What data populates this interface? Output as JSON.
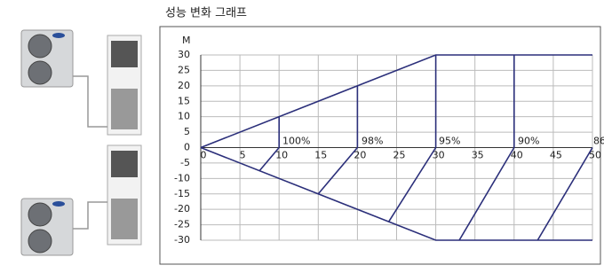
{
  "chart_data": {
    "type": "line",
    "title": "성능 변화 그래프",
    "y_label": "M",
    "xlim": [
      0,
      50
    ],
    "xticks": [
      0,
      5,
      10,
      15,
      20,
      25,
      30,
      35,
      40,
      45,
      50
    ],
    "ylim": [
      -30,
      30
    ],
    "yticks": [
      30,
      25,
      20,
      15,
      10,
      5,
      0,
      -5,
      -10,
      -15,
      -20,
      -25,
      -30
    ],
    "grid": true,
    "color": "#2b2f7a",
    "series": [
      {
        "x": [
          0,
          30,
          50
        ],
        "values": [
          0,
          30,
          30
        ]
      },
      {
        "x": [
          0,
          30,
          50
        ],
        "values": [
          0,
          -30,
          -30
        ]
      },
      {
        "x": [
          10,
          10
        ],
        "values": [
          0,
          10
        ]
      },
      {
        "x": [
          20,
          20
        ],
        "values": [
          0,
          20
        ]
      },
      {
        "x": [
          30,
          30
        ],
        "values": [
          0,
          30
        ]
      },
      {
        "x": [
          40,
          40
        ],
        "values": [
          0,
          30
        ]
      },
      {
        "x": [
          10,
          7.5
        ],
        "values": [
          0,
          -7.5
        ]
      },
      {
        "x": [
          20,
          15
        ],
        "values": [
          0,
          -15
        ]
      },
      {
        "x": [
          30,
          24
        ],
        "values": [
          0,
          -24
        ]
      },
      {
        "x": [
          40,
          33
        ],
        "values": [
          0,
          -30
        ]
      },
      {
        "x": [
          50,
          43
        ],
        "values": [
          0,
          -30
        ]
      }
    ],
    "annotations": [
      "100%",
      "98%",
      "95%",
      "90%",
      "86"
    ]
  }
}
